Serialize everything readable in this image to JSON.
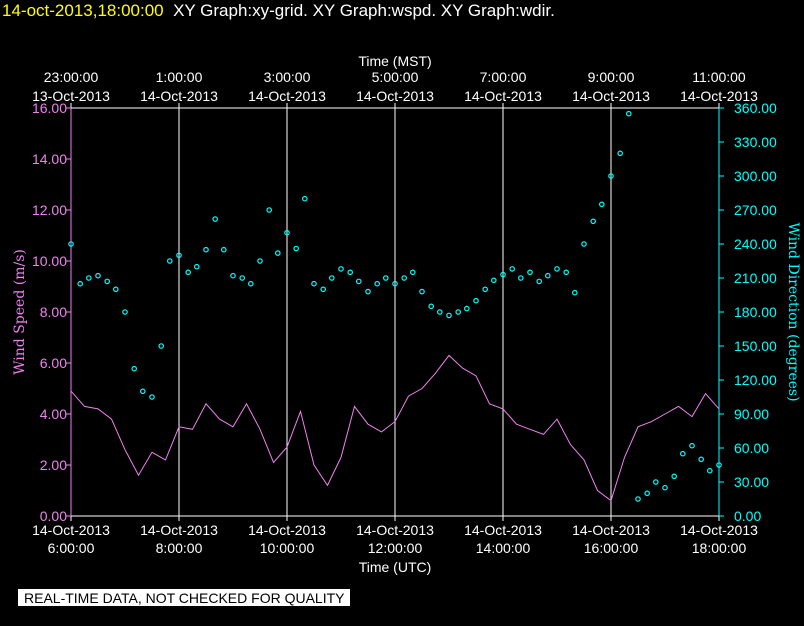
{
  "header": {
    "datetime": "14-oct-2013,18:00:00",
    "graphs": "XY Graph:xy-grid.  XY Graph:wspd.  XY Graph:wdir."
  },
  "colors": {
    "speed": "#ee82ee",
    "direction": "#00ffff",
    "grid": "#ffffff",
    "title_date": "#ffff00"
  },
  "chart_data": {
    "type": "line",
    "top_axis": {
      "label": "Time (MST)",
      "ticks": [
        {
          "time": "23:00:00",
          "date": "13-Oct-2013"
        },
        {
          "time": "1:00:00",
          "date": "14-Oct-2013"
        },
        {
          "time": "3:00:00",
          "date": "14-Oct-2013"
        },
        {
          "time": "5:00:00",
          "date": "14-Oct-2013"
        },
        {
          "time": "7:00:00",
          "date": "14-Oct-2013"
        },
        {
          "time": "9:00:00",
          "date": "14-Oct-2013"
        },
        {
          "time": "11:00:00",
          "date": "14-Oct-2013"
        }
      ]
    },
    "bottom_axis": {
      "label": "Time (UTC)",
      "ticks": [
        {
          "date": "14-Oct-2013",
          "time": "6:00:00"
        },
        {
          "date": "14-Oct-2013",
          "time": "8:00:00"
        },
        {
          "date": "14-Oct-2013",
          "time": "10:00:00"
        },
        {
          "date": "14-Oct-2013",
          "time": "12:00:00"
        },
        {
          "date": "14-Oct-2013",
          "time": "14:00:00"
        },
        {
          "date": "14-Oct-2013",
          "time": "16:00:00"
        },
        {
          "date": "14-Oct-2013",
          "time": "18:00:00"
        }
      ],
      "xlim_hours_utc": [
        6,
        18
      ]
    },
    "y_left": {
      "label": "Wind Speed (m/s)",
      "ticks": [
        "0.00",
        "2.00",
        "4.00",
        "6.00",
        "8.00",
        "10.00",
        "12.00",
        "14.00",
        "16.00"
      ],
      "ylim": [
        0,
        16
      ]
    },
    "y_right": {
      "label": "Wind Direction (degrees)",
      "ticks": [
        "0.00",
        "30.00",
        "60.00",
        "90.00",
        "120.00",
        "150.00",
        "180.00",
        "210.00",
        "240.00",
        "270.00",
        "300.00",
        "330.00",
        "360.00"
      ],
      "ylim": [
        0,
        360
      ]
    },
    "series": [
      {
        "name": "Wind Speed",
        "kind": "line",
        "axis": "left",
        "x": [
          6.0,
          6.25,
          6.5,
          6.75,
          7.0,
          7.25,
          7.5,
          7.75,
          8.0,
          8.25,
          8.5,
          8.75,
          9.0,
          9.25,
          9.5,
          9.75,
          10.0,
          10.25,
          10.5,
          10.75,
          11.0,
          11.25,
          11.5,
          11.75,
          12.0,
          12.25,
          12.5,
          12.75,
          13.0,
          13.25,
          13.5,
          13.75,
          14.0,
          14.25,
          14.5,
          14.75,
          15.0,
          15.25,
          15.5,
          15.75,
          16.0,
          16.25,
          16.5,
          16.75,
          17.0,
          17.25,
          17.5,
          17.75,
          18.0
        ],
        "values": [
          4.9,
          4.3,
          4.2,
          3.8,
          2.6,
          1.6,
          2.5,
          2.2,
          3.5,
          3.4,
          4.4,
          3.8,
          3.5,
          4.4,
          3.4,
          2.1,
          2.7,
          4.1,
          2.0,
          1.2,
          2.3,
          4.3,
          3.6,
          3.3,
          3.7,
          4.7,
          5.0,
          5.6,
          6.3,
          5.8,
          5.5,
          4.4,
          4.2,
          3.6,
          3.4,
          3.2,
          3.8,
          2.8,
          2.2,
          1.0,
          0.6,
          2.3,
          3.5,
          3.7,
          4.0,
          4.3,
          3.9,
          4.8,
          4.2
        ]
      },
      {
        "name": "Wind Direction",
        "kind": "scatter",
        "axis": "right",
        "x": [
          6.0,
          6.17,
          6.33,
          6.5,
          6.67,
          6.83,
          7.0,
          7.17,
          7.33,
          7.5,
          7.67,
          7.83,
          8.0,
          8.17,
          8.33,
          8.5,
          8.67,
          8.83,
          9.0,
          9.17,
          9.33,
          9.5,
          9.67,
          9.83,
          10.0,
          10.17,
          10.33,
          10.5,
          10.67,
          10.83,
          11.0,
          11.17,
          11.33,
          11.5,
          11.67,
          11.83,
          12.0,
          12.17,
          12.33,
          12.5,
          12.67,
          12.83,
          13.0,
          13.17,
          13.33,
          13.5,
          13.67,
          13.83,
          14.0,
          14.17,
          14.33,
          14.5,
          14.67,
          14.83,
          15.0,
          15.17,
          15.33,
          15.5,
          15.67,
          15.83,
          16.0,
          16.17,
          16.33,
          16.5,
          16.67,
          16.83,
          17.0,
          17.17,
          17.33,
          17.5,
          17.67,
          17.83,
          18.0
        ],
        "values": [
          240,
          205,
          210,
          212,
          207,
          200,
          180,
          130,
          110,
          105,
          150,
          225,
          230,
          215,
          220,
          235,
          262,
          235,
          212,
          210,
          205,
          225,
          270,
          232,
          250,
          236,
          280,
          205,
          200,
          210,
          218,
          215,
          207,
          198,
          205,
          210,
          205,
          210,
          215,
          198,
          185,
          180,
          177,
          180,
          183,
          190,
          200,
          208,
          213,
          218,
          210,
          215,
          207,
          212,
          218,
          215,
          197,
          240,
          260,
          275,
          300,
          320,
          355,
          15,
          20,
          30,
          25,
          35,
          55,
          62,
          50,
          40,
          45
        ]
      }
    ]
  },
  "footer": {
    "notice": "REAL-TIME DATA, NOT CHECKED FOR QUALITY"
  }
}
